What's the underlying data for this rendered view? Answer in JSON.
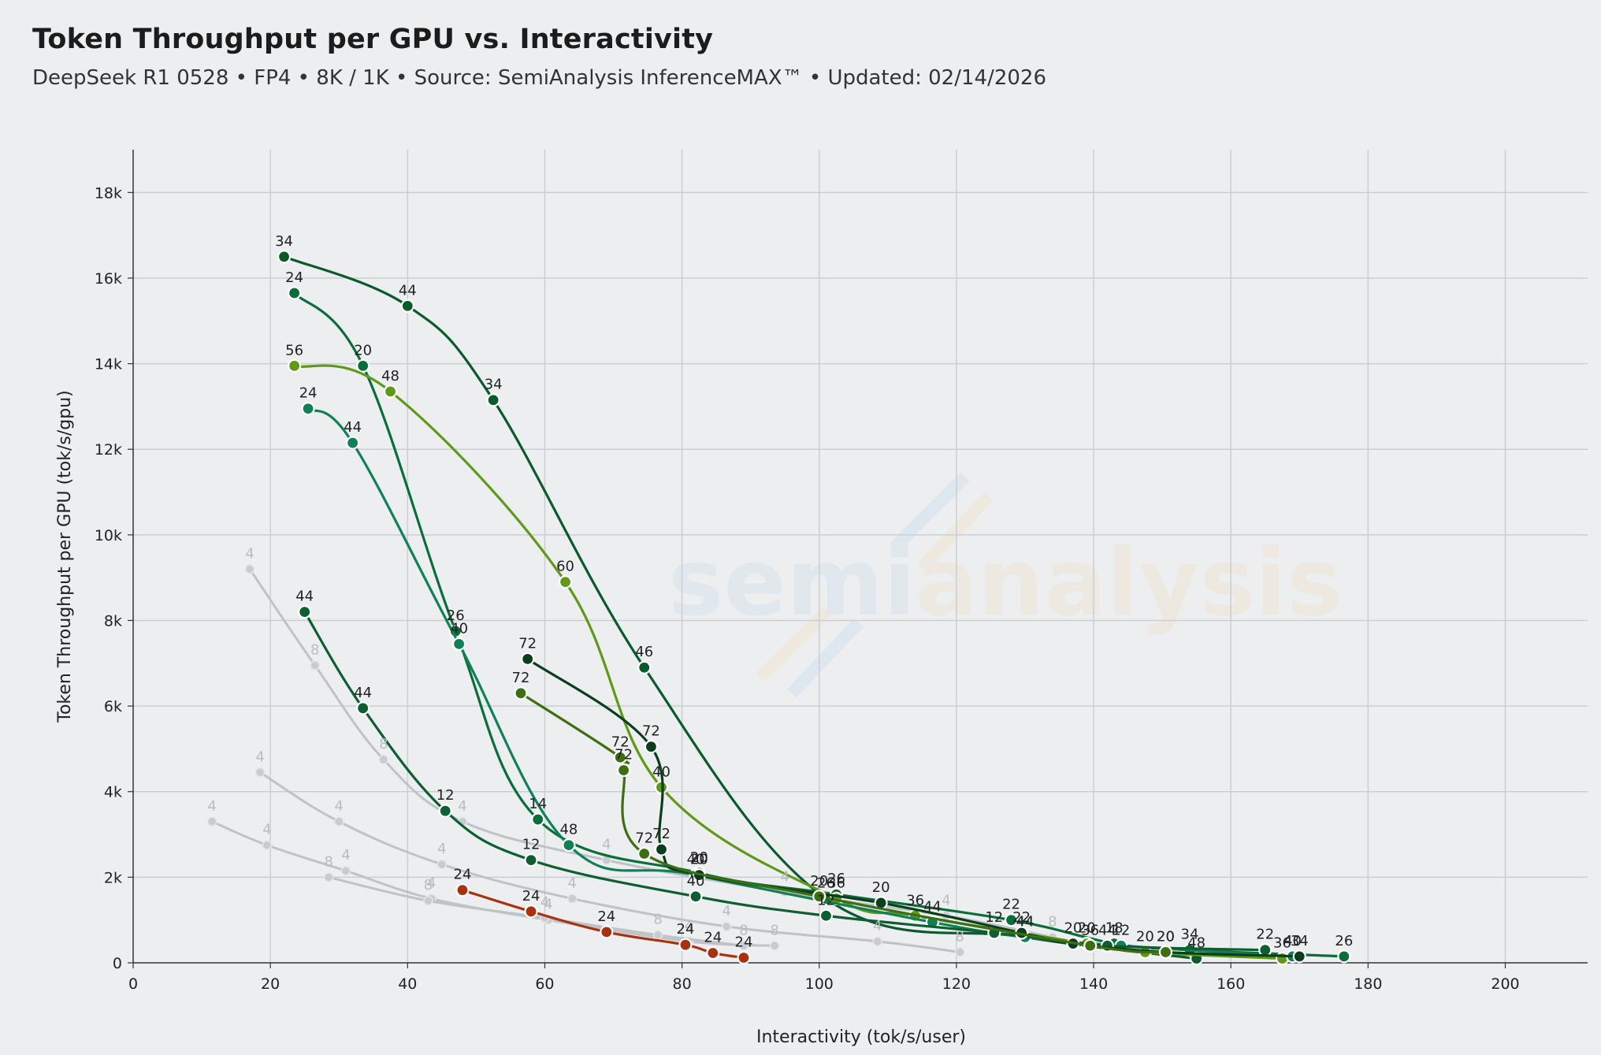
{
  "title": "Token Throughput per GPU vs. Interactivity",
  "subtitle": "DeepSeek R1 0528 • FP4 • 8K / 1K • Source: SemiAnalysis InferenceMAX™ • Updated: 02/14/2026",
  "watermark": {
    "part1": "semi",
    "part2": "analysis"
  },
  "chart_data": {
    "type": "line",
    "xlabel": "Interactivity (tok/s/user)",
    "ylabel": "Token Throughput per GPU (tok/s/gpu)",
    "xlim": [
      0,
      212
    ],
    "ylim": [
      0,
      19000
    ],
    "xticks": [
      0,
      20,
      40,
      60,
      80,
      100,
      120,
      140,
      160,
      180,
      200
    ],
    "yticks": [
      0,
      2000,
      4000,
      6000,
      8000,
      10000,
      12000,
      14000,
      16000,
      18000
    ],
    "ytick_labels": [
      "0",
      "2k",
      "4k",
      "6k",
      "8k",
      "10k",
      "12k",
      "14k",
      "16k",
      "18k"
    ],
    "grid": true,
    "series": [
      {
        "color": "#bfc3c8",
        "ghost": true,
        "points": [
          {
            "x": 17,
            "y": 9200,
            "label": "4"
          },
          {
            "x": 26.5,
            "y": 6950,
            "label": "8"
          },
          {
            "x": 36.5,
            "y": 4750,
            "label": "8"
          },
          {
            "x": 48,
            "y": 3300,
            "label": "4"
          },
          {
            "x": 69,
            "y": 2400,
            "label": "4"
          },
          {
            "x": 95,
            "y": 1650,
            "label": "4"
          },
          {
            "x": 118.5,
            "y": 1100,
            "label": "4"
          },
          {
            "x": 134,
            "y": 600,
            "label": "8"
          }
        ]
      },
      {
        "color": "#bfc3c8",
        "ghost": true,
        "points": [
          {
            "x": 18.5,
            "y": 4450,
            "label": "4"
          },
          {
            "x": 30,
            "y": 3300,
            "label": "4"
          },
          {
            "x": 45,
            "y": 2300,
            "label": "4"
          },
          {
            "x": 64,
            "y": 1500,
            "label": "4"
          },
          {
            "x": 86.5,
            "y": 850,
            "label": "4"
          },
          {
            "x": 108.5,
            "y": 500,
            "label": "4"
          },
          {
            "x": 120.5,
            "y": 250,
            "label": "8"
          }
        ]
      },
      {
        "color": "#bfc3c8",
        "ghost": true,
        "points": [
          {
            "x": 11.5,
            "y": 3300,
            "label": "4"
          },
          {
            "x": 19.5,
            "y": 2750,
            "label": "4"
          },
          {
            "x": 31,
            "y": 2150,
            "label": "4"
          },
          {
            "x": 43.5,
            "y": 1500,
            "label": "4"
          },
          {
            "x": 60.5,
            "y": 1000,
            "label": "4"
          },
          {
            "x": 81,
            "y": 500,
            "label": "4"
          },
          {
            "x": 93.5,
            "y": 400,
            "label": "8"
          }
        ]
      },
      {
        "color": "#bfc3c8",
        "ghost": true,
        "points": [
          {
            "x": 28.5,
            "y": 2000,
            "label": "8"
          },
          {
            "x": 43,
            "y": 1450,
            "label": "8"
          },
          {
            "x": 60,
            "y": 1050,
            "label": "4"
          },
          {
            "x": 76.5,
            "y": 650,
            "label": "8"
          },
          {
            "x": 89,
            "y": 400,
            "label": "8"
          }
        ]
      },
      {
        "color": "#a83210",
        "ghost": false,
        "points": [
          {
            "x": 48,
            "y": 1700,
            "label": "24"
          },
          {
            "x": 58,
            "y": 1200,
            "label": "24"
          },
          {
            "x": 69,
            "y": 720,
            "label": "24"
          },
          {
            "x": 80.5,
            "y": 420,
            "label": "24"
          },
          {
            "x": 84.5,
            "y": 230,
            "label": "24"
          },
          {
            "x": 89,
            "y": 120,
            "label": "24"
          }
        ]
      },
      {
        "color": "#0b5a2c",
        "ghost": false,
        "points": [
          {
            "x": 22,
            "y": 16500,
            "label": "34"
          },
          {
            "x": 40,
            "y": 15350,
            "label": "44"
          },
          {
            "x": 52.5,
            "y": 13150,
            "label": "34"
          },
          {
            "x": 74.5,
            "y": 6900,
            "label": "46"
          },
          {
            "x": 101,
            "y": 1500,
            "label": "26"
          },
          {
            "x": 130,
            "y": 600,
            "label": "44"
          },
          {
            "x": 155,
            "y": 100,
            "label": "48"
          }
        ]
      },
      {
        "color": "#0a6e3a",
        "ghost": false,
        "points": [
          {
            "x": 23.5,
            "y": 15650,
            "label": "24"
          },
          {
            "x": 33.5,
            "y": 13950,
            "label": "20"
          },
          {
            "x": 47,
            "y": 7750,
            "label": "26"
          },
          {
            "x": 59,
            "y": 3350,
            "label": "14"
          },
          {
            "x": 82.5,
            "y": 2100,
            "label": "20"
          },
          {
            "x": 102.5,
            "y": 1600,
            "label": "26"
          },
          {
            "x": 128,
            "y": 1000,
            "label": "22"
          },
          {
            "x": 143,
            "y": 450,
            "label": "18"
          },
          {
            "x": 154,
            "y": 300,
            "label": "34"
          },
          {
            "x": 176.5,
            "y": 150,
            "label": "26"
          }
        ]
      },
      {
        "color": "#5e9a18",
        "ghost": false,
        "points": [
          {
            "x": 23.5,
            "y": 13950,
            "label": "56"
          },
          {
            "x": 37.5,
            "y": 13350,
            "label": "48"
          },
          {
            "x": 63,
            "y": 8900,
            "label": "60"
          },
          {
            "x": 77,
            "y": 4100,
            "label": "40"
          },
          {
            "x": 102.5,
            "y": 1500,
            "label": "36"
          },
          {
            "x": 114,
            "y": 1100,
            "label": "36"
          },
          {
            "x": 139,
            "y": 450,
            "label": "20"
          },
          {
            "x": 147.5,
            "y": 250,
            "label": "20"
          },
          {
            "x": 167.5,
            "y": 100,
            "label": "36"
          }
        ]
      },
      {
        "color": "#108055",
        "ghost": false,
        "points": [
          {
            "x": 25.5,
            "y": 12950,
            "label": "24"
          },
          {
            "x": 32,
            "y": 12150,
            "label": "44"
          },
          {
            "x": 47.5,
            "y": 7450,
            "label": "40"
          },
          {
            "x": 63.5,
            "y": 2750,
            "label": "48"
          },
          {
            "x": 82,
            "y": 2050,
            "label": "40"
          },
          {
            "x": 116.5,
            "y": 950,
            "label": "44"
          },
          {
            "x": 130,
            "y": 600,
            "label": "44"
          },
          {
            "x": 144,
            "y": 400,
            "label": "12"
          },
          {
            "x": 169,
            "y": 150,
            "label": "40"
          }
        ]
      },
      {
        "color": "#0d5e30",
        "ghost": false,
        "points": [
          {
            "x": 25,
            "y": 8200,
            "label": "44"
          },
          {
            "x": 33.5,
            "y": 5950,
            "label": "44"
          },
          {
            "x": 45.5,
            "y": 3550,
            "label": "12"
          },
          {
            "x": 58,
            "y": 2400,
            "label": "12"
          },
          {
            "x": 82,
            "y": 1550,
            "label": "40"
          },
          {
            "x": 101,
            "y": 1100,
            "label": "12"
          },
          {
            "x": 125.5,
            "y": 700,
            "label": "12"
          },
          {
            "x": 142,
            "y": 400,
            "label": "44"
          },
          {
            "x": 165,
            "y": 300,
            "label": "22"
          }
        ]
      },
      {
        "color": "#0a3e1d",
        "ghost": false,
        "points": [
          {
            "x": 57.5,
            "y": 7100,
            "label": "72"
          },
          {
            "x": 75.5,
            "y": 5050,
            "label": "72"
          },
          {
            "x": 77,
            "y": 2650,
            "label": "72"
          },
          {
            "x": 82.5,
            "y": 2050,
            "label": "20"
          },
          {
            "x": 109,
            "y": 1400,
            "label": "20"
          },
          {
            "x": 129.5,
            "y": 700,
            "label": "22"
          },
          {
            "x": 137,
            "y": 450,
            "label": "20"
          },
          {
            "x": 150.5,
            "y": 250,
            "label": "20"
          },
          {
            "x": 170,
            "y": 150,
            "label": "34"
          }
        ]
      },
      {
        "color": "#3d6e12",
        "ghost": false,
        "points": [
          {
            "x": 56.5,
            "y": 6300,
            "label": "72"
          },
          {
            "x": 71,
            "y": 4800,
            "label": "72"
          },
          {
            "x": 71.5,
            "y": 4500,
            "label": "72"
          },
          {
            "x": 74.5,
            "y": 2550,
            "label": "72"
          },
          {
            "x": 100,
            "y": 1550,
            "label": "20"
          },
          {
            "x": 139.5,
            "y": 400,
            "label": "36"
          },
          {
            "x": 150.5,
            "y": 250,
            "label": "20"
          }
        ]
      }
    ]
  }
}
